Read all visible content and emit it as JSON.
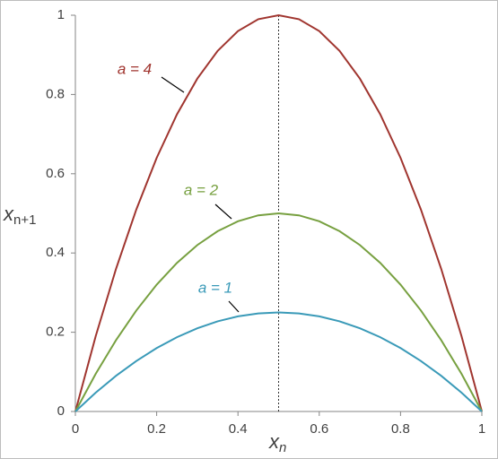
{
  "chart_data": {
    "type": "line",
    "xlabel": "x",
    "xlabel_sub": "n",
    "ylabel": "x",
    "ylabel_sub": "n+1",
    "x": [
      0,
      0.05,
      0.1,
      0.15,
      0.2,
      0.25,
      0.3,
      0.35,
      0.4,
      0.45,
      0.5,
      0.55,
      0.6,
      0.65,
      0.7,
      0.75,
      0.8,
      0.85,
      0.9,
      0.95,
      1
    ],
    "series": [
      {
        "name": "a = 4",
        "color": "#a0352f",
        "values": [
          0,
          0.19,
          0.36,
          0.51,
          0.64,
          0.75,
          0.84,
          0.91,
          0.96,
          0.99,
          1,
          0.99,
          0.96,
          0.91,
          0.84,
          0.75,
          0.64,
          0.51,
          0.36,
          0.19,
          0
        ]
      },
      {
        "name": "a = 2",
        "color": "#77a040",
        "values": [
          0,
          0.095,
          0.18,
          0.255,
          0.32,
          0.375,
          0.42,
          0.455,
          0.48,
          0.495,
          0.5,
          0.495,
          0.48,
          0.455,
          0.42,
          0.375,
          0.32,
          0.255,
          0.18,
          0.095,
          0
        ]
      },
      {
        "name": "a = 1",
        "color": "#3a9ab8",
        "values": [
          0,
          0.0475,
          0.09,
          0.1275,
          0.16,
          0.1875,
          0.21,
          0.2275,
          0.24,
          0.2475,
          0.25,
          0.2475,
          0.24,
          0.2275,
          0.21,
          0.1875,
          0.16,
          0.1275,
          0.09,
          0.0475,
          0
        ]
      }
    ],
    "vline": 0.5,
    "xlim": [
      0,
      1
    ],
    "ylim": [
      0,
      1
    ],
    "xticks": [
      0,
      0.2,
      0.4,
      0.6,
      0.8,
      1
    ],
    "yticks": [
      0,
      0.2,
      0.4,
      0.6,
      0.8,
      1
    ]
  }
}
